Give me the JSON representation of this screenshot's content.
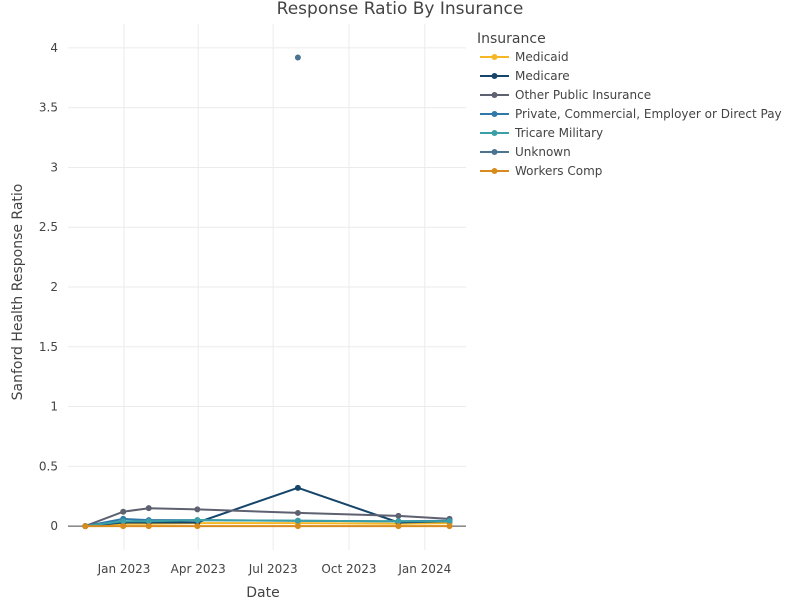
{
  "chart_data": {
    "type": "line",
    "title": "Response Ratio By Insurance",
    "xlabel": "Date",
    "ylabel": "Sanford Health Response Ratio",
    "ylim": [
      -0.2,
      4.2
    ],
    "yticks": [
      0,
      0.5,
      1,
      1.5,
      2,
      2.5,
      3,
      3.5,
      4
    ],
    "ytick_labels": [
      "0",
      "0.5",
      "1",
      "1.5",
      "2",
      "2.5",
      "3",
      "3.5",
      "4"
    ],
    "xlim": [
      "2022-10-25",
      "2024-02-20"
    ],
    "xticks": [
      "2023-01-01",
      "2023-04-01",
      "2023-07-01",
      "2023-10-01",
      "2024-01-01"
    ],
    "xtick_labels": [
      "Jan 2023",
      "Apr 2023",
      "Jul 2023",
      "Oct 2023",
      "Jan 2024"
    ],
    "grid": true,
    "legend": {
      "title": "Insurance",
      "placement": "right"
    },
    "series": [
      {
        "name": "Medicaid",
        "color": "#f5b724",
        "points": [
          [
            "2022-11-15",
            0
          ],
          [
            "2022-12-31",
            0.02
          ],
          [
            "2023-01-31",
            0.02
          ],
          [
            "2023-03-31",
            0.025
          ],
          [
            "2023-07-31",
            0.025
          ],
          [
            "2023-11-30",
            0.02
          ],
          [
            "2024-01-31",
            0.025
          ]
        ]
      },
      {
        "name": "Medicare",
        "color": "#16456a",
        "points": [
          [
            "2022-11-15",
            0
          ],
          [
            "2022-12-31",
            0.03
          ],
          [
            "2023-01-31",
            0.03
          ],
          [
            "2023-03-31",
            0.03
          ],
          [
            "2023-07-31",
            0.32
          ],
          [
            "2023-11-30",
            0.03
          ],
          [
            "2024-01-31",
            0.04
          ]
        ]
      },
      {
        "name": "Other Public Insurance",
        "color": "#5d6170",
        "points": [
          [
            "2022-11-15",
            0
          ],
          [
            "2022-12-31",
            0.12
          ],
          [
            "2023-01-31",
            0.15
          ],
          [
            "2023-03-31",
            0.14
          ],
          [
            "2023-07-31",
            0.11
          ],
          [
            "2023-11-30",
            0.085
          ],
          [
            "2024-01-31",
            0.06
          ]
        ]
      },
      {
        "name": "Private, Commercial, Employer or Direct Pay",
        "color": "#2f78a8",
        "points": [
          [
            "2022-11-15",
            0
          ],
          [
            "2022-12-31",
            0.06
          ],
          [
            "2023-01-31",
            0.05
          ],
          [
            "2023-03-31",
            0.05
          ],
          [
            "2023-07-31",
            0.045
          ],
          [
            "2023-11-30",
            0.04
          ],
          [
            "2024-01-31",
            0.045
          ]
        ]
      },
      {
        "name": "Tricare Military",
        "color": "#3a9fa6",
        "points": [
          [
            "2022-11-15",
            0
          ],
          [
            "2022-12-31",
            0.04
          ],
          [
            "2023-01-31",
            0.04
          ],
          [
            "2023-03-31",
            0.05
          ],
          [
            "2023-07-31",
            0.045
          ],
          [
            "2023-11-30",
            0.04
          ],
          [
            "2024-01-31",
            0.04
          ]
        ]
      },
      {
        "name": "Unknown",
        "color": "#4b7491",
        "points": [
          [
            "2023-07-31",
            3.92
          ]
        ]
      },
      {
        "name": "Workers Comp",
        "color": "#d88a1c",
        "points": [
          [
            "2022-11-15",
            0
          ],
          [
            "2022-12-31",
            0
          ],
          [
            "2023-01-31",
            0
          ],
          [
            "2023-03-31",
            0
          ],
          [
            "2023-07-31",
            0
          ],
          [
            "2023-11-30",
            0
          ],
          [
            "2024-01-31",
            0
          ]
        ]
      }
    ]
  }
}
